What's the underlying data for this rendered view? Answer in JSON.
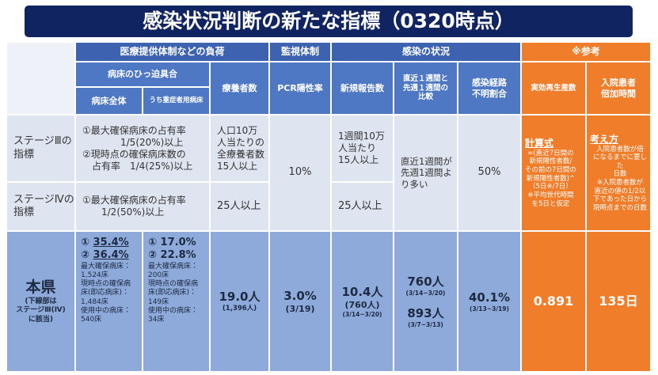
{
  "title": "感染状況判断の新たな指標（0320時点）",
  "header": {
    "burden": "医療提供体制などの負荷",
    "monitoring": "監視体制",
    "infection": "感染の状況",
    "reference": "※参考",
    "bed_pressure": "病床のひっ迫具合",
    "beds_all": "病床全体",
    "beds_severe": "うち重症者用病床",
    "patients": "療養者数",
    "pcr": "PCR陽性率",
    "new_cases": "新規報告数",
    "weekly_compare": "直近１週間と\n先週１週間の\n比較",
    "unknown_route": "感染経路\n不明割合",
    "rt": "実効再生産数",
    "doubling": "入院患者\n倍加時間"
  },
  "stage3": {
    "label": "ステージⅢの\n指標",
    "beds": "①最大確保病床の占有率\n　　　　1/5(20%)以上\n②現時点の確保病床数の\n　占有率　1/4(25%)以上",
    "patients": "人口10万\n人当たりの\n全療養者数\n15人以上",
    "new_cases": "1週間10万\n人当たり\n15人以上"
  },
  "stage4": {
    "label": "ステージⅣの\n指標",
    "beds": "①最大確保病床の占有率\n　　1/2(50%)以上",
    "patients": "25人以上",
    "new_cases": "25人以上"
  },
  "stage_shared": {
    "pcr": "10%",
    "weekly_compare": "直近1週間が\n先週1週間よ\nり多い",
    "unknown_route": "50%",
    "rt_note": {
      "title": "計算式",
      "body": "=(直近7日間の\n新規陽性者数/\nその前の7日間の\n新規陽性者数)^\n（5日※/7日）\n※平均世代時間\nを5日と仮定"
    },
    "doubling_note": {
      "title": "考え方",
      "body": "入院患者数が倍\nになるまでに要した\n日数\n※入院患者数が\n直近の値の1/2以\n下であった日から\n現時点までの日数"
    }
  },
  "prefecture": {
    "label": "本県",
    "note": "(下線部は\nステージⅢ(Ⅳ)\nに該当)",
    "beds_all": {
      "marker1": "①",
      "rate1": "35.4%",
      "marker2": "②",
      "rate2": "36.4%",
      "detail": "最大確保病床：\n1,524床\n現時点の確保病\n床(即応病床)：\n1,484床\n使用中の病床：\n540床"
    },
    "beds_severe": {
      "marker1": "①",
      "rate1": "17.0%",
      "marker2": "②",
      "rate2": "22.8%",
      "detail": "最大確保病床：\n200床\n現時点の確保病\n床(即応病床)：\n149床\n使用中の病床：\n34床"
    },
    "patients": {
      "value": "19.0人",
      "sub": "(1,396人)"
    },
    "pcr": {
      "value": "3.0%",
      "sub": "(3/19)"
    },
    "new_cases": {
      "value": "10.4人",
      "sub": "(760人)",
      "period": "(3/14~3/20)"
    },
    "weekly_compare": {
      "value1": "760人",
      "period1": "(3/14~3/20)",
      "value2": "893人",
      "period2": "(3/7~3/13)"
    },
    "unknown_route": {
      "value": "40.1%",
      "period": "(3/13~3/19)"
    },
    "rt": "0.891",
    "doubling": "135日"
  }
}
